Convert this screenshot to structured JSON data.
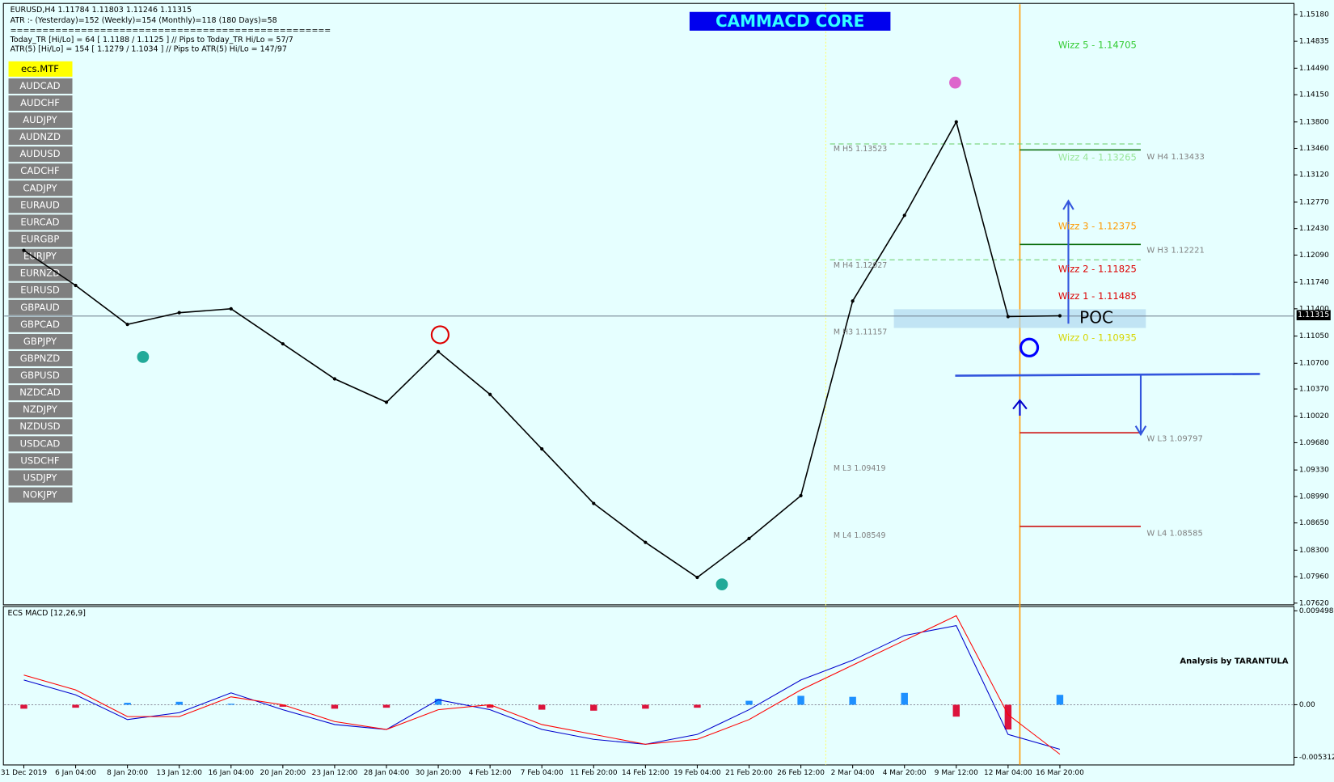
{
  "header": {
    "symbol_line": "EURUSD,H4  1.11784 1.11803 1.11246 1.11315",
    "atr_line": "ATR :- (Yesterday)=152      (Weekly)=154      (Monthly)=118      (180 Days)=58",
    "separator": "==================================================",
    "today_tr_line": "Today_TR [Hi/Lo] = 64 [ 1.1188 / 1.1125 ]  // Pips to Today_TR Hi/Lo  = 57/7",
    "atr5_line": "ATR(5)      [Hi/Lo] = 154 [ 1.1279 / 1.1034 ]  //  Pips to ATR(5) Hi/Lo      = 147/97"
  },
  "active_symbol": "ecs.MTF",
  "symbols": [
    "AUDCAD",
    "AUDCHF",
    "AUDJPY",
    "AUDNZD",
    "AUDUSD",
    "CADCHF",
    "CADJPY",
    "EURAUD",
    "EURCAD",
    "EURGBP",
    "EURJPY",
    "EURNZD",
    "EURUSD",
    "GBPAUD",
    "GBPCAD",
    "GBPJPY",
    "GBPNZD",
    "GBPUSD",
    "NZDCAD",
    "NZDJPY",
    "NZDUSD",
    "USDCAD",
    "USDCHF",
    "USDJPY",
    "NOKJPY"
  ],
  "title_badge": "CAMMACD CORE",
  "last_price_label": "1.11315",
  "annotations": [
    {
      "text": "Wizz 5 - 1.14705",
      "color": "#33cc33"
    },
    {
      "text": "Wizz 4 - 1.13265",
      "color": "#99e699"
    },
    {
      "text": "Wizz 3 - 1.12375",
      "color": "#ff9900"
    },
    {
      "text": "Wizz 2 - 1.11825",
      "color": "#dd0000"
    },
    {
      "text": "Wizz 1 - 1.11485",
      "color": "#dd0000"
    },
    {
      "text": "Wizz 0 - 1.10935",
      "color": "#d6d600"
    },
    {
      "text": "POC",
      "color": "#000000"
    },
    {
      "text": "M  H5 1.13523",
      "color": "#808080"
    },
    {
      "text": "M  H4 1.12027",
      "color": "#808080"
    },
    {
      "text": "M  H3 1.11157",
      "color": "#808080"
    },
    {
      "text": "M  L3 1.09419",
      "color": "#808080"
    },
    {
      "text": "M  L4 1.08549",
      "color": "#808080"
    },
    {
      "text": "W  H4 1.13433",
      "color": "#808080"
    },
    {
      "text": "W  H3 1.12221",
      "color": "#808080"
    },
    {
      "text": "W  L3 1.09797",
      "color": "#808080"
    },
    {
      "text": "W  L4 1.08585",
      "color": "#808080"
    },
    {
      "text": "Analysis by TARANTULA",
      "color": "#000000"
    }
  ],
  "chart_data": [
    {
      "type": "line",
      "color": "#000000",
      "categories": [
        "31 Dec 2019",
        "6 Jan 04:00",
        "8 Jan 20:00",
        "13 Jan 12:00",
        "16 Jan 04:00",
        "20 Jan 20:00",
        "23 Jan 12:00",
        "28 Jan 04:00",
        "30 Jan 20:00",
        "4 Feb 12:00",
        "7 Feb 04:00",
        "11 Feb 20:00",
        "14 Feb 12:00",
        "19 Feb 04:00",
        "21 Feb 20:00",
        "26 Feb 12:00",
        "2 Mar 04:00",
        "4 Mar 20:00",
        "9 Mar 12:00",
        "12 Mar 04:00",
        "16 Mar 20:00"
      ],
      "values": [
        1.1215,
        1.117,
        1.112,
        1.1135,
        1.114,
        1.1095,
        1.105,
        1.102,
        1.1085,
        1.103,
        1.096,
        1.089,
        1.084,
        1.0795,
        1.0845,
        1.09,
        1.115,
        1.126,
        1.138,
        1.113,
        1.1131
      ],
      "ylim": [
        1.0762,
        1.1518
      ],
      "yticks": [
        {
          "value": 1.1518,
          "label": "1.15180"
        },
        {
          "value": 1.14835,
          "label": "1.14835"
        },
        {
          "value": 1.1449,
          "label": "1.14490"
        },
        {
          "value": 1.1415,
          "label": "1.14150"
        },
        {
          "value": 1.138,
          "label": "1.13800"
        },
        {
          "value": 1.1346,
          "label": "1.13460"
        },
        {
          "value": 1.1312,
          "label": "1.13120"
        },
        {
          "value": 1.1277,
          "label": "1.12770"
        },
        {
          "value": 1.1243,
          "label": "1.12430"
        },
        {
          "value": 1.1209,
          "label": "1.12090"
        },
        {
          "value": 1.1174,
          "label": "1.11740"
        },
        {
          "value": 1.114,
          "label": "1.11400"
        },
        {
          "value": 1.1105,
          "label": "1.11050"
        },
        {
          "value": 1.107,
          "label": "1.10700"
        },
        {
          "value": 1.1037,
          "label": "1.10370"
        },
        {
          "value": 1.1002,
          "label": "1.10020"
        },
        {
          "value": 1.0968,
          "label": "1.09680"
        },
        {
          "value": 1.0933,
          "label": "1.09330"
        },
        {
          "value": 1.0899,
          "label": "1.08990"
        },
        {
          "value": 1.0865,
          "label": "1.08650"
        },
        {
          "value": 1.083,
          "label": "1.08300"
        },
        {
          "value": 1.0796,
          "label": "1.07960"
        },
        {
          "value": 1.0762,
          "label": "1.07620"
        }
      ]
    },
    {
      "type": "macd",
      "title": "ECS MACD [12,26,9]",
      "ylim": [
        -0.005312,
        0.0094984
      ],
      "yticks": [
        0.0094984,
        {
          "value": 0,
          "label": "0.00"
        },
        -0.005312
      ],
      "series": [
        {
          "type": "bar",
          "color": "#1e90ff",
          "negative_color": "#dc143c",
          "values": [
            -0.0004,
            -0.0003,
            0.0002,
            0.0003,
            0.0001,
            -0.0002,
            -0.0004,
            -0.0003,
            0.0006,
            -0.0003,
            -0.0005,
            -0.0006,
            -0.0004,
            -0.0003,
            0.0004,
            0.0009,
            0.0008,
            0.0012,
            -0.0012,
            -0.0025,
            0.001
          ]
        },
        {
          "type": "line",
          "color": "#0000cd",
          "values": [
            0.0025,
            0.001,
            -0.0015,
            -0.0008,
            0.0012,
            -0.0005,
            -0.002,
            -0.0025,
            0.0005,
            -0.0005,
            -0.0025,
            -0.0035,
            -0.004,
            -0.003,
            -0.0005,
            0.0025,
            0.0045,
            0.007,
            0.008,
            -0.003,
            -0.0045
          ]
        },
        {
          "type": "line",
          "color": "#ff0000",
          "values": [
            0.003,
            0.0015,
            -0.0012,
            -0.0012,
            0.0008,
            0,
            -0.0017,
            -0.0025,
            -0.0005,
            0,
            -0.002,
            -0.003,
            -0.004,
            -0.0035,
            -0.0015,
            0.0015,
            0.004,
            0.0065,
            0.009,
            -0.001,
            -0.005
          ]
        }
      ]
    }
  ]
}
